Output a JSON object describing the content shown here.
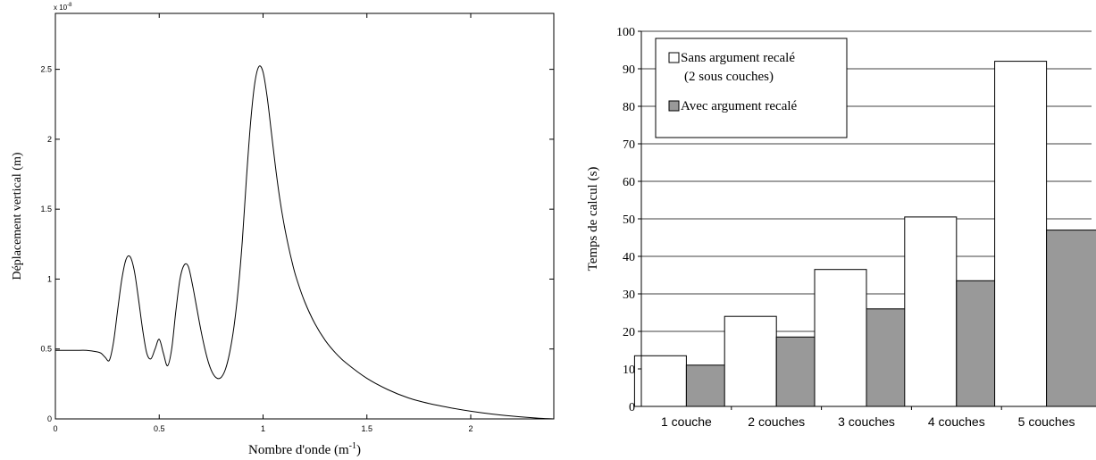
{
  "chart_data": [
    {
      "type": "line",
      "title": "",
      "xlabel": "Nombre d'onde (m",
      "xlabel_sup": "-1",
      "xlabel_end": ")",
      "ylabel": "Déplacement vertical (m)",
      "y_multiplier": "x 10",
      "y_multiplier_exp": "-8",
      "xlim": [
        0,
        2.4
      ],
      "ylim": [
        0,
        2.9
      ],
      "xticks": [
        0,
        0.5,
        1,
        1.5,
        2
      ],
      "xtick_labels": [
        "0",
        "0.5",
        "1",
        "1.5",
        "2"
      ],
      "yticks": [
        0,
        0.5,
        1,
        1.5,
        2,
        2.5
      ],
      "ytick_labels": [
        "0",
        "0.5",
        "1",
        "1.5",
        "2",
        "2.5"
      ],
      "grid": false,
      "series": [
        {
          "x": [
            0,
            0.05,
            0.1,
            0.15,
            0.2,
            0.22,
            0.24,
            0.26,
            0.28,
            0.3,
            0.32,
            0.34,
            0.36,
            0.38,
            0.4,
            0.42,
            0.44,
            0.46,
            0.48,
            0.5,
            0.52,
            0.54,
            0.56,
            0.58,
            0.6,
            0.62,
            0.64,
            0.66,
            0.68,
            0.7,
            0.72,
            0.74,
            0.76,
            0.78,
            0.8,
            0.82,
            0.84,
            0.86,
            0.88,
            0.9,
            0.92,
            0.94,
            0.96,
            0.98,
            1.0,
            1.02,
            1.04,
            1.06,
            1.08,
            1.1,
            1.12,
            1.14,
            1.16,
            1.2,
            1.25,
            1.3,
            1.35,
            1.4,
            1.5,
            1.6,
            1.7,
            1.8,
            1.9,
            2.0,
            2.1,
            2.2,
            2.3,
            2.35,
            2.4
          ],
          "y": [
            0.49,
            0.49,
            0.49,
            0.49,
            0.48,
            0.47,
            0.44,
            0.42,
            0.55,
            0.78,
            1.0,
            1.14,
            1.16,
            1.06,
            0.86,
            0.64,
            0.47,
            0.43,
            0.5,
            0.57,
            0.47,
            0.38,
            0.5,
            0.77,
            1.0,
            1.1,
            1.09,
            0.96,
            0.8,
            0.64,
            0.5,
            0.39,
            0.32,
            0.29,
            0.3,
            0.36,
            0.48,
            0.66,
            0.92,
            1.27,
            1.72,
            2.12,
            2.4,
            2.52,
            2.48,
            2.3,
            2.05,
            1.8,
            1.58,
            1.4,
            1.25,
            1.12,
            1.01,
            0.84,
            0.68,
            0.56,
            0.47,
            0.4,
            0.29,
            0.21,
            0.15,
            0.11,
            0.08,
            0.055,
            0.035,
            0.02,
            0.008,
            0.003,
            0.0
          ]
        }
      ]
    },
    {
      "type": "bar",
      "title": "",
      "xlabel": "",
      "ylabel": "Temps de calcul (s)",
      "categories": [
        "1 couche",
        "2 couches",
        "3 couches",
        "4 couches",
        "5 couches"
      ],
      "ylim": [
        0,
        100
      ],
      "yticks": [
        0,
        10,
        20,
        30,
        40,
        50,
        60,
        70,
        80,
        90,
        100
      ],
      "grid": true,
      "legend": "top-left",
      "series": [
        {
          "name": "Sans argument recalé",
          "name_line2": "(2 sous couches)",
          "color": "#ffffff",
          "values": [
            13.5,
            24,
            36.5,
            50.5,
            92
          ]
        },
        {
          "name": "Avec argument recalé",
          "color": "#999999",
          "values": [
            11,
            18.5,
            26,
            33.5,
            47
          ]
        }
      ]
    }
  ]
}
